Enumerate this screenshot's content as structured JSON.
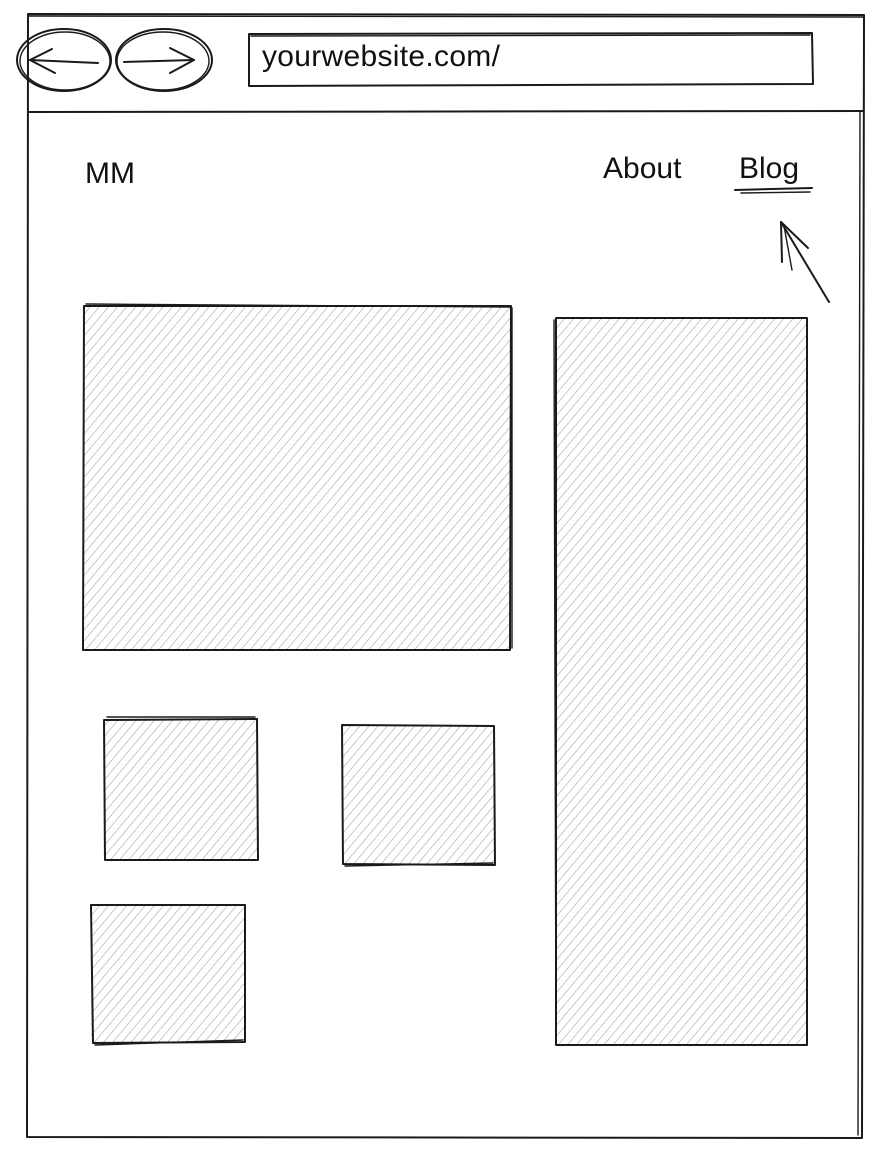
{
  "browser": {
    "url": "yourwebsite.com/",
    "back_icon": "arrow-left-icon",
    "forward_icon": "arrow-right-icon"
  },
  "site": {
    "logo": "MM",
    "nav": {
      "about": "About",
      "blog": "Blog"
    },
    "cursor_icon": "pointer-arrow-icon"
  },
  "colors": {
    "ink": "#1a1a1a",
    "hatch": "#9aa0a6",
    "paper": "#ffffff"
  }
}
